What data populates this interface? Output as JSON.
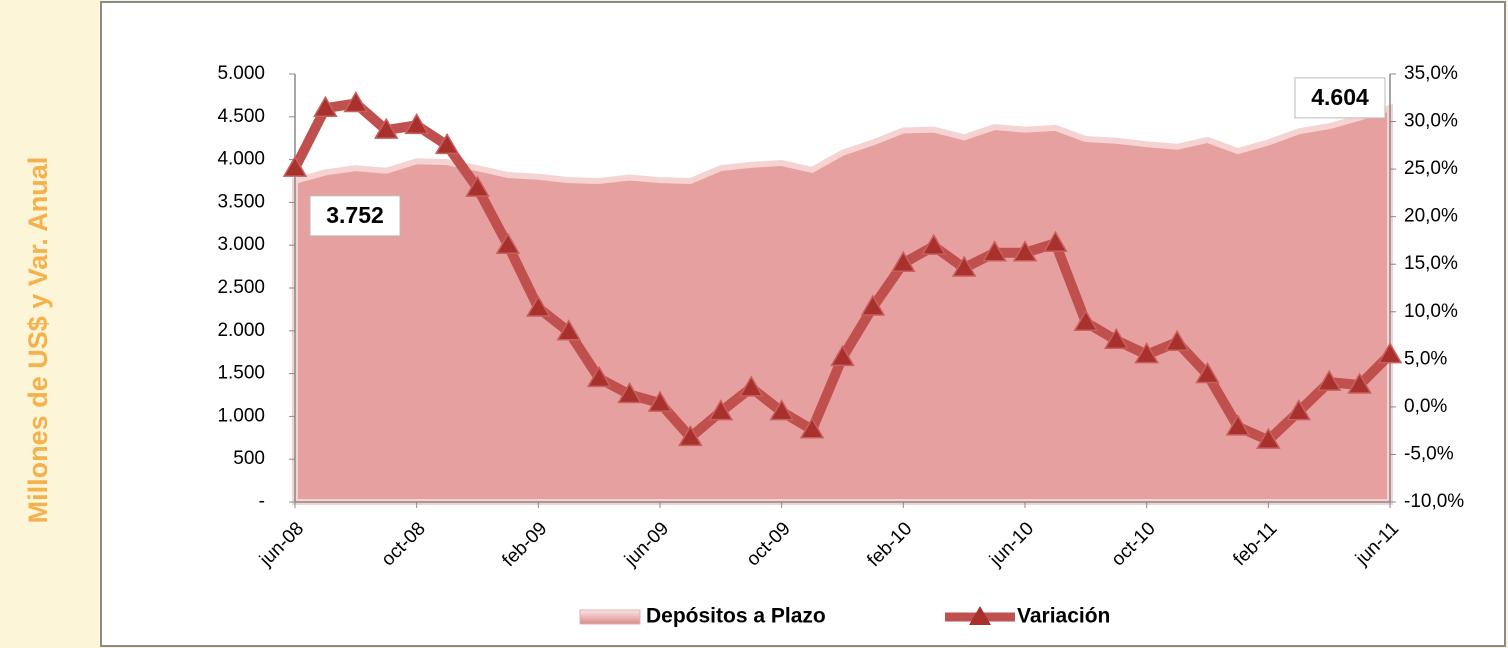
{
  "chart_data": {
    "type": "area_line",
    "ylabel": "Millones de US$ y Var. Anual",
    "categories": [
      "jun-08",
      null,
      null,
      null,
      "oct-08",
      null,
      null,
      null,
      "feb-09",
      null,
      null,
      null,
      "jun-09",
      null,
      null,
      null,
      "oct-09",
      null,
      null,
      null,
      "feb-10",
      null,
      null,
      null,
      "jun-10",
      null,
      null,
      null,
      "oct-10",
      null,
      null,
      null,
      "feb-11",
      null,
      null,
      null,
      "jun-11"
    ],
    "series": [
      {
        "name": "Depósitos a Plazo",
        "type": "area",
        "color": "#e6a0a0",
        "values": [
          3752,
          3850,
          3900,
          3870,
          3980,
          3970,
          3900,
          3820,
          3800,
          3760,
          3750,
          3790,
          3760,
          3750,
          3900,
          3940,
          3960,
          3880,
          4080,
          4200,
          4340,
          4350,
          4260,
          4380,
          4350,
          4370,
          4240,
          4220,
          4180,
          4150,
          4230,
          4100,
          4200,
          4330,
          4390,
          4490,
          4604
        ],
        "value_labels": [
          "3.752",
          null,
          null,
          null,
          null,
          null,
          null,
          null,
          null,
          null,
          null,
          null,
          null,
          null,
          null,
          null,
          null,
          null,
          null,
          null,
          null,
          null,
          null,
          null,
          null,
          null,
          null,
          null,
          null,
          null,
          null,
          null,
          null,
          null,
          null,
          null,
          "4.604"
        ]
      },
      {
        "name": "Variación",
        "type": "line",
        "axis": "y2",
        "color": "#c0504d",
        "values": [
          25.1,
          31.4,
          31.9,
          29.1,
          29.6,
          27.5,
          23.0,
          17.0,
          10.4,
          7.9,
          3.0,
          1.3,
          0.4,
          -3.2,
          -0.5,
          2.0,
          -0.5,
          -2.4,
          5.2,
          10.5,
          15.1,
          16.9,
          14.6,
          16.2,
          16.2,
          17.2,
          8.9,
          7.0,
          5.5,
          6.8,
          3.4,
          -2.1,
          -3.5,
          -0.5,
          2.6,
          2.3,
          5.5
        ]
      }
    ],
    "ylim": [
      0,
      5000
    ],
    "yticks": [
      {
        "value": 0,
        "label": "-"
      },
      500,
      {
        "value": 1000,
        "label": "1.000"
      },
      {
        "value": 1500,
        "label": "1.500"
      },
      {
        "value": 2000,
        "label": "2.000"
      },
      {
        "value": 2500,
        "label": "2.500"
      },
      {
        "value": 3000,
        "label": "3.000"
      },
      {
        "value": 3500,
        "label": "3.500"
      },
      {
        "value": 4000,
        "label": "4.000"
      },
      {
        "value": 4500,
        "label": "4.500"
      },
      {
        "value": 5000,
        "label": "5.000"
      }
    ],
    "y2lim": [
      -10,
      35
    ],
    "y2ticks": [
      {
        "value": -10,
        "label": "-10,0%"
      },
      {
        "value": -5,
        "label": "-5,0%"
      },
      {
        "value": 0,
        "label": "0,0%"
      },
      {
        "value": 5,
        "label": "5,0%"
      },
      {
        "value": 10,
        "label": "10,0%"
      },
      {
        "value": 15,
        "label": "15,0%"
      },
      {
        "value": 20,
        "label": "20,0%"
      },
      {
        "value": 25,
        "label": "25,0%"
      },
      {
        "value": 30,
        "label": "30,0%"
      },
      {
        "value": 35,
        "label": "35,0%"
      }
    ],
    "legend": "bottom"
  }
}
